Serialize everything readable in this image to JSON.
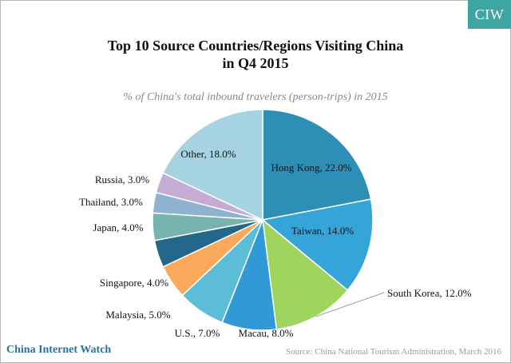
{
  "logo": "CIW",
  "title_line1": "Top 10 Source Countries/Regions Visiting China",
  "title_line2": "in Q4 2015",
  "subtitle": "% of China's total inbound travelers (person-trips) in 2015",
  "brand": "China Internet Watch",
  "source": "Source: China National Tourism Administration, March 2016",
  "chart_data": {
    "type": "pie",
    "title": "Top 10 Source Countries/Regions Visiting China in Q4 2015",
    "subtitle": "% of China's total inbound travelers (person-trips) in 2015",
    "slices": [
      {
        "name": "Hong Kong",
        "value": 22.0,
        "label": "Hong Kong, 22.0%",
        "color": "#2d8fb5"
      },
      {
        "name": "Taiwan",
        "value": 14.0,
        "label": "Taiwan, 14.0%",
        "color": "#35a4d9"
      },
      {
        "name": "South Korea",
        "value": 12.0,
        "label": "South Korea, 12.0%",
        "color": "#9fd55e"
      },
      {
        "name": "Macau",
        "value": 8.0,
        "label": "Macau, 8.0%",
        "color": "#3099d6"
      },
      {
        "name": "U.S.",
        "value": 7.0,
        "label": "U.S., 7.0%",
        "color": "#5cbdd6"
      },
      {
        "name": "Malaysia",
        "value": 5.0,
        "label": "Malaysia, 5.0%",
        "color": "#fba95b"
      },
      {
        "name": "Singapore",
        "value": 4.0,
        "label": "Singapore, 4.0%",
        "color": "#23678a"
      },
      {
        "name": "Japan",
        "value": 4.0,
        "label": "Japan, 4.0%",
        "color": "#78b3b0"
      },
      {
        "name": "Thailand",
        "value": 3.0,
        "label": "Thailand, 3.0%",
        "color": "#8fb3cf"
      },
      {
        "name": "Russia",
        "value": 3.0,
        "label": "Russia, 3.0%",
        "color": "#c4acd5"
      },
      {
        "name": "Other",
        "value": 18.0,
        "label": "Other, 18.0%",
        "color": "#a6d3e2"
      }
    ]
  }
}
